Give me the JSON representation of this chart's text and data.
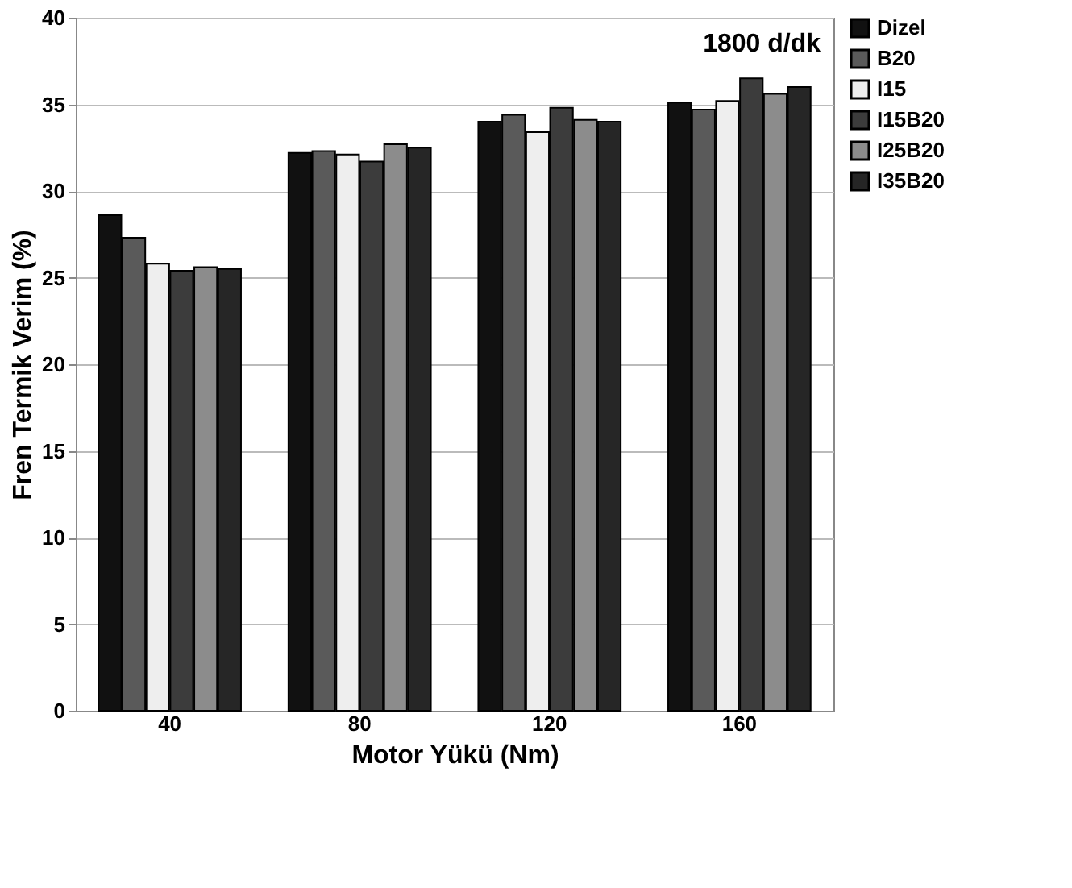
{
  "chart_data": {
    "type": "bar",
    "xlabel": "Motor Yükü (Nm)",
    "ylabel": "Fren Termik Verim (%)",
    "annotations": [
      "1800 d/dk"
    ],
    "categories": [
      "40",
      "80",
      "120",
      "160"
    ],
    "series": [
      {
        "name": "Dizel",
        "color": "#111111",
        "values": [
          28.6,
          32.2,
          34.0,
          35.1
        ]
      },
      {
        "name": "B20",
        "color": "#5a5a5a",
        "values": [
          27.3,
          32.3,
          34.4,
          34.7
        ]
      },
      {
        "name": "I15",
        "color": "#eeeeee",
        "values": [
          25.8,
          32.1,
          33.4,
          35.2
        ]
      },
      {
        "name": "I15B20",
        "color": "#3c3c3c",
        "values": [
          25.4,
          31.7,
          34.8,
          36.5
        ]
      },
      {
        "name": "I25B20",
        "color": "#8c8c8c",
        "values": [
          25.6,
          32.7,
          34.1,
          35.6
        ]
      },
      {
        "name": "I35B20",
        "color": "#262626",
        "values": [
          25.5,
          32.5,
          34.0,
          36.0
        ]
      }
    ],
    "ylim": [
      0,
      40
    ],
    "yticks": [
      0,
      5,
      10,
      15,
      20,
      25,
      30,
      35,
      40
    ],
    "grid": "y",
    "legend": "right"
  }
}
